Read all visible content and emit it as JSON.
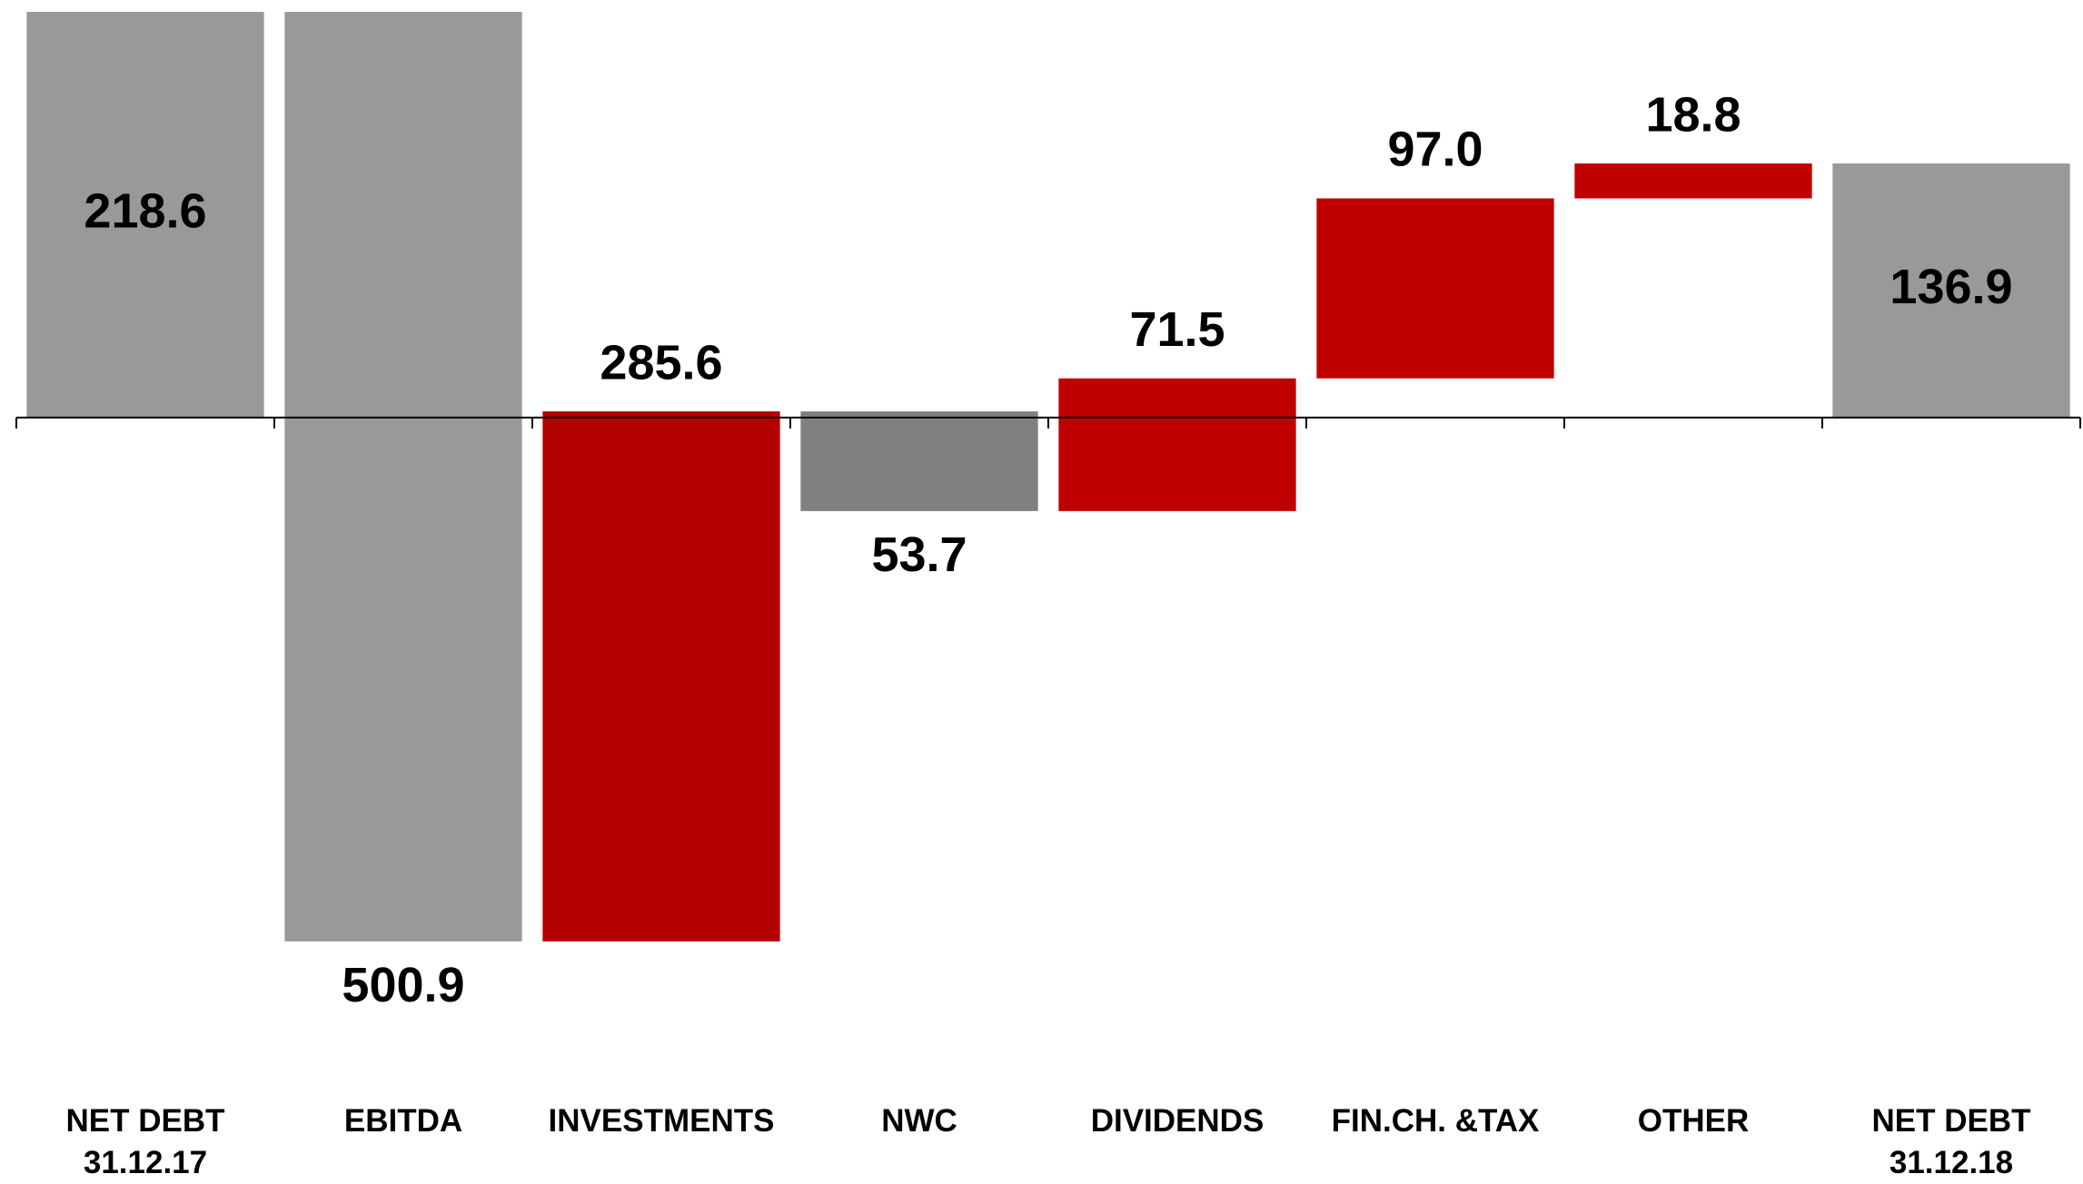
{
  "chart_data": {
    "type": "waterfall",
    "categories": [
      "NET DEBT 31.12.17",
      "EBITDA",
      "INVESTMENTS",
      "NWC",
      "DIVIDENDS",
      "FIN.CH. &TAX",
      "OTHER",
      "NET DEBT 31.12.18"
    ],
    "values": [
      218.6,
      -500.9,
      285.6,
      -53.7,
      71.5,
      97.0,
      18.8,
      136.9
    ],
    "value_labels": [
      "218.6",
      "500.9",
      "285.6",
      "53.7",
      "71.5",
      "97.0",
      "18.8",
      "136.9"
    ],
    "colors": [
      "#999999",
      "#999999",
      "#b30000",
      "#808080",
      "#c00000",
      "#c00000",
      "#c00000",
      "#999999"
    ],
    "ylim": [
      -300,
      225
    ]
  }
}
